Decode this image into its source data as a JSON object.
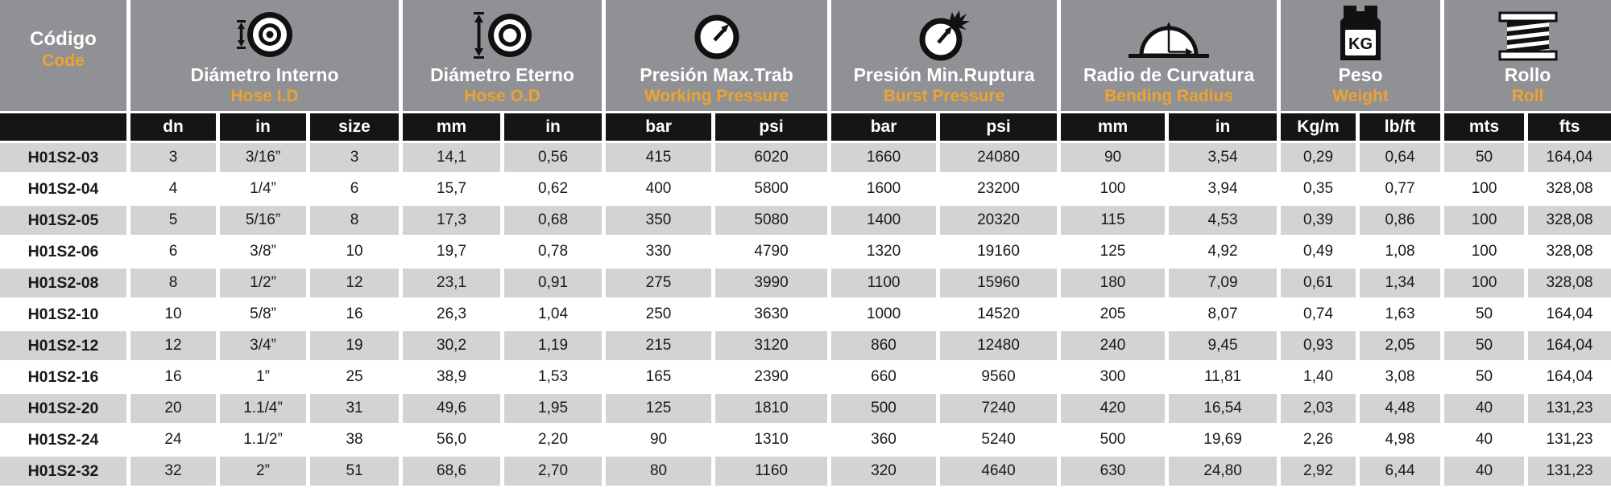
{
  "table": {
    "groups": [
      {
        "es": "Código",
        "en": "Code",
        "icon": ""
      },
      {
        "es": "Diámetro Interno",
        "en": "Hose I.D",
        "icon": "hose-id-icon"
      },
      {
        "es": "Diámetro Eterno",
        "en": "Hose O.D",
        "icon": "hose-od-icon"
      },
      {
        "es": "Presión Max.Trab",
        "en": "Working Pressure",
        "icon": "working-pressure-gauge-icon"
      },
      {
        "es": "Presión Min.Ruptura",
        "en": "Burst Pressure",
        "icon": "burst-pressure-gauge-icon"
      },
      {
        "es": "Radio de Curvatura",
        "en": "Bending Radius",
        "icon": "bending-radius-icon"
      },
      {
        "es": "Peso",
        "en": "Weight",
        "icon": "weight-kg-icon"
      },
      {
        "es": "Rollo",
        "en": "Roll",
        "icon": "hose-roll-icon"
      }
    ],
    "subcols": [
      "",
      "dn",
      "in",
      "size",
      "mm",
      "in",
      "bar",
      "psi",
      "bar",
      "psi",
      "mm",
      "in",
      "Kg/m",
      "lb/ft",
      "mts",
      "fts"
    ],
    "rows": [
      [
        "H01S2-03",
        "3",
        "3/16”",
        "3",
        "14,1",
        "0,56",
        "415",
        "6020",
        "1660",
        "24080",
        "90",
        "3,54",
        "0,29",
        "0,64",
        "50",
        "164,04"
      ],
      [
        "H01S2-04",
        "4",
        "1/4”",
        "6",
        "15,7",
        "0,62",
        "400",
        "5800",
        "1600",
        "23200",
        "100",
        "3,94",
        "0,35",
        "0,77",
        "100",
        "328,08"
      ],
      [
        "H01S2-05",
        "5",
        "5/16”",
        "8",
        "17,3",
        "0,68",
        "350",
        "5080",
        "1400",
        "20320",
        "115",
        "4,53",
        "0,39",
        "0,86",
        "100",
        "328,08"
      ],
      [
        "H01S2-06",
        "6",
        "3/8”",
        "10",
        "19,7",
        "0,78",
        "330",
        "4790",
        "1320",
        "19160",
        "125",
        "4,92",
        "0,49",
        "1,08",
        "100",
        "328,08"
      ],
      [
        "H01S2-08",
        "8",
        "1/2”",
        "12",
        "23,1",
        "0,91",
        "275",
        "3990",
        "1100",
        "15960",
        "180",
        "7,09",
        "0,61",
        "1,34",
        "100",
        "328,08"
      ],
      [
        "H01S2-10",
        "10",
        "5/8”",
        "16",
        "26,3",
        "1,04",
        "250",
        "3630",
        "1000",
        "14520",
        "205",
        "8,07",
        "0,74",
        "1,63",
        "50",
        "164,04"
      ],
      [
        "H01S2-12",
        "12",
        "3/4”",
        "19",
        "30,2",
        "1,19",
        "215",
        "3120",
        "860",
        "12480",
        "240",
        "9,45",
        "0,93",
        "2,05",
        "50",
        "164,04"
      ],
      [
        "H01S2-16",
        "16",
        "1”",
        "25",
        "38,9",
        "1,53",
        "165",
        "2390",
        "660",
        "9560",
        "300",
        "11,81",
        "1,40",
        "3,08",
        "50",
        "164,04"
      ],
      [
        "H01S2-20",
        "20",
        "1.1/4”",
        "31",
        "49,6",
        "1,95",
        "125",
        "1810",
        "500",
        "7240",
        "420",
        "16,54",
        "2,03",
        "4,48",
        "40",
        "131,23"
      ],
      [
        "H01S2-24",
        "24",
        "1.1/2”",
        "38",
        "56,0",
        "2,20",
        "90",
        "1310",
        "360",
        "5240",
        "500",
        "19,69",
        "2,26",
        "4,98",
        "40",
        "131,23"
      ],
      [
        "H01S2-32",
        "32",
        "2”",
        "51",
        "68,6",
        "2,70",
        "80",
        "1160",
        "320",
        "4640",
        "630",
        "24,80",
        "2,92",
        "6,44",
        "40",
        "131,23"
      ]
    ]
  },
  "colors": {
    "header_gray": "#8F9194",
    "subheader_black": "#151515",
    "row_gray": "#D2D3D5",
    "row_white": "#FFFFFF",
    "accent_orange": "#EFA32F",
    "text_dark": "#1A1A1A"
  }
}
